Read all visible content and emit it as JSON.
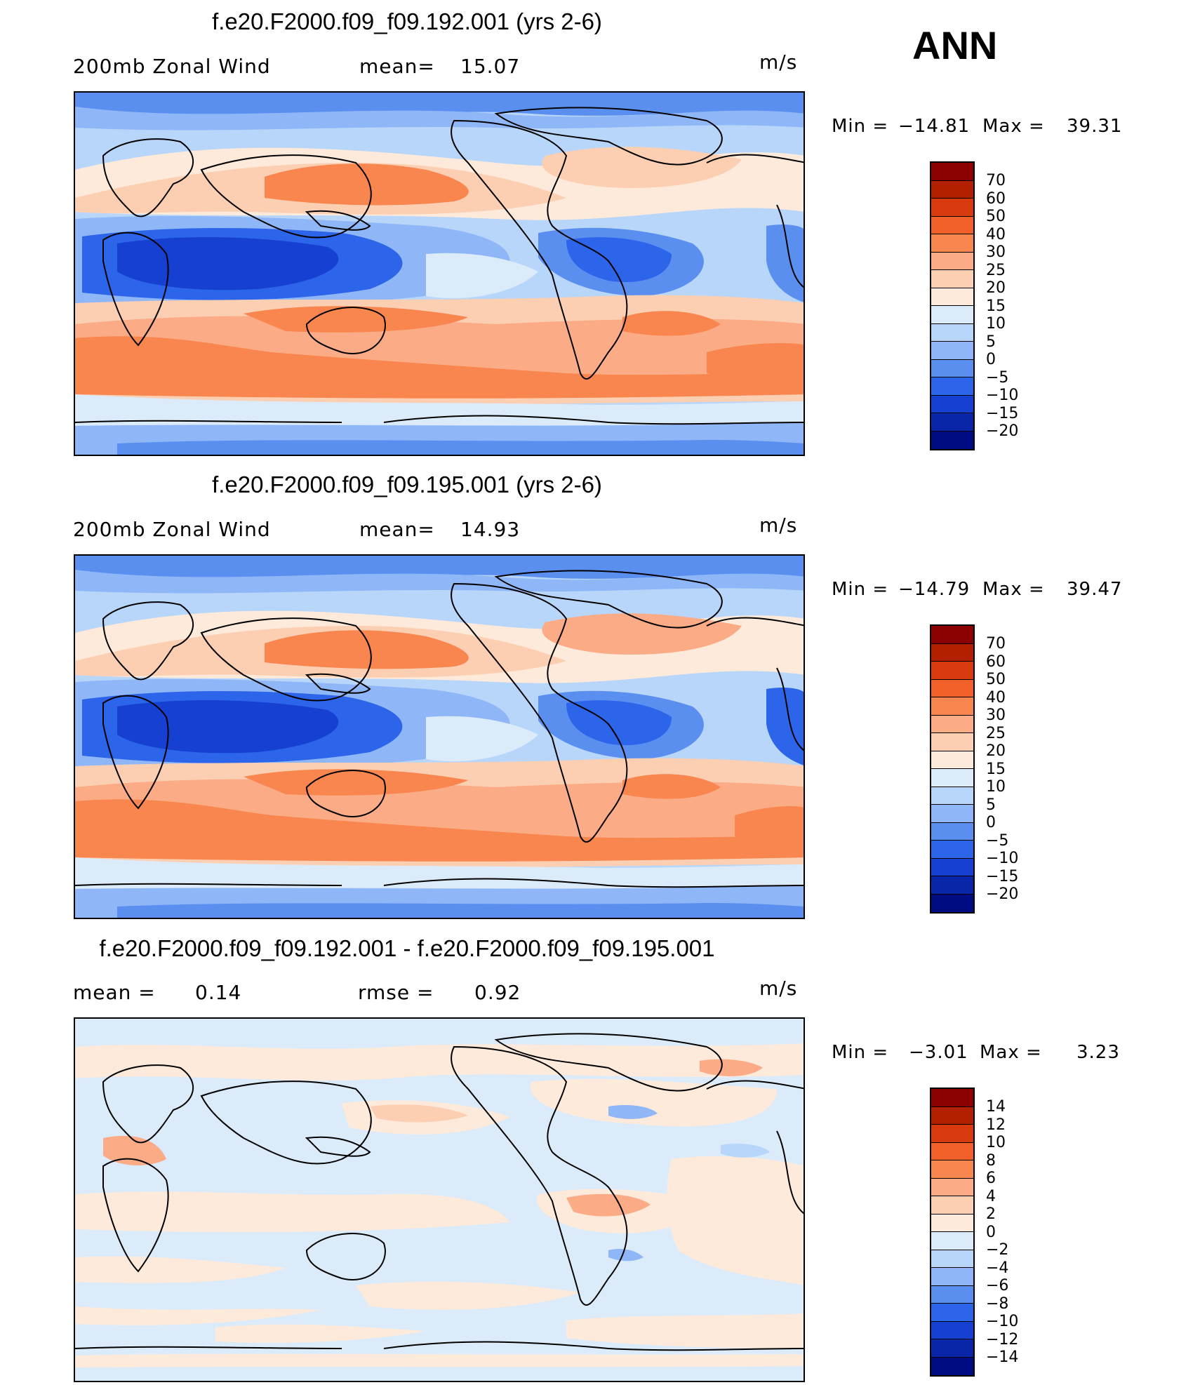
{
  "season": "ANN",
  "units": "m/s",
  "panels": [
    {
      "title": "f.e20.F2000.f09_f09.192.001 (yrs 2-6)",
      "variable": "200mb Zonal Wind",
      "stat_label": "mean=",
      "stat_value": "15.07",
      "min_label": "Min =",
      "min_value": "−14.81",
      "max_label": "Max =",
      "max_value": "39.31"
    },
    {
      "title": "f.e20.F2000.f09_f09.195.001 (yrs 2-6)",
      "variable": "200mb Zonal Wind",
      "stat_label": "mean=",
      "stat_value": "14.93",
      "min_label": "Min =",
      "min_value": "−14.79",
      "max_label": "Max =",
      "max_value": "39.47"
    },
    {
      "title": "f.e20.F2000.f09_f09.192.001 - f.e20.F2000.f09_f09.195.001",
      "mean_label": "mean =",
      "mean_value": "0.14",
      "rmse_label": "rmse =",
      "rmse_value": "0.92",
      "min_label": "Min =",
      "min_value": "−3.01",
      "max_label": "Max =",
      "max_value": "3.23"
    }
  ],
  "colorbar_main": {
    "labels": [
      "70",
      "60",
      "50",
      "40",
      "30",
      "25",
      "20",
      "15",
      "10",
      "5",
      "0",
      "−5",
      "−10",
      "−15",
      "−20"
    ],
    "colors": [
      "#8b0000",
      "#b22000",
      "#d83a10",
      "#f2602a",
      "#f8864e",
      "#fbab85",
      "#fdcfb2",
      "#feeadb",
      "#dcebfa",
      "#b8d6fa",
      "#8fb6f6",
      "#5a8ff0",
      "#2c64ea",
      "#1540d2",
      "#0a26a8",
      "#000c82"
    ]
  },
  "colorbar_diff": {
    "labels": [
      "14",
      "12",
      "10",
      "8",
      "6",
      "4",
      "2",
      "0",
      "−2",
      "−4",
      "−6",
      "−8",
      "−10",
      "−12",
      "−14"
    ],
    "colors": [
      "#8b0000",
      "#b22000",
      "#d83a10",
      "#f2602a",
      "#f8864e",
      "#fbab85",
      "#fdcfb2",
      "#feeadb",
      "#dcebfa",
      "#b8d6fa",
      "#8fb6f6",
      "#5a8ff0",
      "#2c64ea",
      "#1540d2",
      "#0a26a8",
      "#000c82"
    ]
  }
}
